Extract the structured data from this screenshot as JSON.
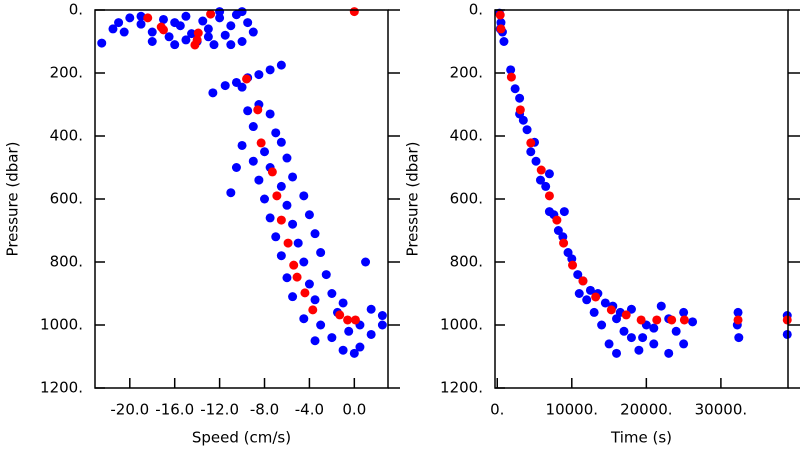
{
  "chart_data": [
    {
      "type": "scatter",
      "xlabel": "Speed (cm/s)",
      "ylabel": "Pressure (dbar)",
      "xlim": [
        -23.1,
        3.0
      ],
      "ylim": [
        1200,
        0
      ],
      "xticks": [
        {
          "value": -20,
          "label": "-20.0"
        },
        {
          "value": -16,
          "label": "-16.0"
        },
        {
          "value": -12,
          "label": "-12.0"
        },
        {
          "value": -8,
          "label": "-8.0"
        },
        {
          "value": -4,
          "label": "-4.0"
        },
        {
          "value": 0,
          "label": "0.0"
        }
      ],
      "yticks": [
        {
          "value": 0,
          "label": "0."
        },
        {
          "value": 200,
          "label": "200."
        },
        {
          "value": 400,
          "label": "400."
        },
        {
          "value": 600,
          "label": "600."
        },
        {
          "value": 800,
          "label": "800."
        },
        {
          "value": 1000,
          "label": "1000."
        },
        {
          "value": 1200,
          "label": "1200."
        }
      ],
      "series": [
        {
          "color": "#0000ff",
          "x": [
            -22.5,
            -21.5,
            -21,
            -20,
            -19,
            -18,
            -18,
            -17,
            -16.5,
            -16,
            -15.5,
            -15,
            -14.5,
            -14,
            -13.5,
            -13,
            -12.5,
            -12,
            -11.5,
            -11,
            -10.5,
            -10,
            -9.5,
            -9,
            -12,
            -10,
            -15,
            -19,
            -20.5,
            -13,
            -11,
            -16,
            -11.5,
            -10.5,
            -9.5,
            -8.5,
            -7.5,
            -6.5,
            -10,
            -12.6,
            -9.5,
            -8.5,
            -7.5,
            -9,
            -7,
            -10,
            -8,
            -6.5,
            -9,
            -7.5,
            -6,
            -8.5,
            -6.5,
            -5.5,
            -8,
            -6,
            -4.5,
            -7.5,
            -5.5,
            -4,
            -7,
            -5,
            -3.5,
            -6.5,
            -4.5,
            -3,
            -6,
            -4,
            -2.5,
            -5.5,
            -3.5,
            -2,
            -4.5,
            -3,
            -1.5,
            -2,
            -0.5,
            0.5,
            1.5,
            2.5,
            -1,
            0.5,
            1.5,
            2.5,
            -3.5,
            -1,
            0,
            1,
            -10.5,
            -11
          ],
          "values": [
            105,
            60,
            40,
            25,
            45,
            70,
            100,
            30,
            85,
            110,
            50,
            20,
            75,
            100,
            35,
            60,
            110,
            25,
            80,
            50,
            15,
            100,
            40,
            70,
            5,
            5,
            95,
            20,
            70,
            85,
            110,
            40,
            240,
            230,
            215,
            205,
            190,
            175,
            245,
            263,
            320,
            300,
            330,
            370,
            390,
            430,
            450,
            420,
            480,
            500,
            470,
            540,
            560,
            530,
            600,
            620,
            590,
            660,
            680,
            650,
            720,
            740,
            710,
            780,
            800,
            770,
            850,
            870,
            840,
            910,
            920,
            900,
            980,
            1000,
            960,
            1040,
            1020,
            1000,
            950,
            970,
            1080,
            1070,
            1030,
            1000,
            1050,
            930,
            1090,
            800,
            500,
            580
          ]
        },
        {
          "color": "#ff0000",
          "x": [
            0,
            -18.4,
            -17.2,
            -17.0,
            -12.8,
            -13.9,
            -14.0,
            -14.2,
            -9.6,
            -8.6,
            -8.3,
            -7.3,
            -6.9,
            -6.5,
            -5.9,
            -5.4,
            -5.1,
            -4.4,
            -3.7,
            -1.3,
            -0.6,
            0.1
          ],
          "values": [
            5,
            25,
            54,
            63,
            13,
            73,
            95,
            111,
            219,
            317,
            422,
            514,
            590,
            667,
            740,
            810,
            848,
            898,
            952,
            968,
            984,
            984
          ]
        }
      ]
    },
    {
      "type": "scatter",
      "xlabel": "Time (s)",
      "ylabel": "Pressure (dbar)",
      "xlim": [
        -300,
        39000
      ],
      "ylim": [
        1200,
        0
      ],
      "xticks": [
        {
          "value": 0,
          "label": "0."
        },
        {
          "value": 10000,
          "label": "10000."
        },
        {
          "value": 20000,
          "label": "20000."
        },
        {
          "value": 30000,
          "label": "30000."
        }
      ],
      "yticks": [
        {
          "value": 0,
          "label": "0."
        },
        {
          "value": 200,
          "label": "200."
        },
        {
          "value": 400,
          "label": "400."
        },
        {
          "value": 600,
          "label": "600."
        },
        {
          "value": 800,
          "label": "800."
        },
        {
          "value": 1000,
          "label": "1000."
        },
        {
          "value": 1200,
          "label": "1200."
        }
      ],
      "series": [
        {
          "color": "#0000ff",
          "x": [
            300,
            500,
            700,
            900,
            400,
            1800,
            2400,
            3000,
            3500,
            4000,
            4500,
            5200,
            5800,
            6500,
            7000,
            7600,
            8200,
            8800,
            9500,
            10000,
            10800,
            11500,
            12500,
            13500,
            14500,
            15500,
            16500,
            14000,
            15000,
            16000,
            17000,
            18000,
            19000,
            20000,
            21000,
            22000,
            23000,
            24000,
            25000,
            25000,
            18000,
            21000,
            13000,
            16000,
            23000,
            19500,
            12000,
            26200,
            32300,
            32400,
            32200,
            38900,
            38900,
            9000,
            7000,
            11000,
            5000,
            3000
          ],
          "values": [
            10,
            40,
            70,
            100,
            60,
            190,
            250,
            280,
            350,
            380,
            450,
            480,
            540,
            560,
            640,
            650,
            700,
            720,
            770,
            790,
            840,
            860,
            890,
            900,
            930,
            940,
            960,
            1000,
            1060,
            1090,
            1020,
            950,
            1080,
            1000,
            1060,
            940,
            1090,
            1020,
            960,
            1060,
            1040,
            1010,
            960,
            980,
            980,
            1040,
            920,
            990,
            960,
            1040,
            1000,
            970,
            1030,
            640,
            520,
            900,
            420,
            330
          ]
        },
        {
          "color": "#ff0000",
          "x": [
            400,
            500,
            1900,
            3100,
            4500,
            5900,
            7000,
            8000,
            8900,
            10100,
            11500,
            13200,
            15300,
            17300,
            19300,
            21400,
            23400,
            25100,
            32300,
            38900
          ],
          "values": [
            16,
            60,
            213,
            317,
            422,
            508,
            590,
            667,
            740,
            810,
            860,
            911,
            952,
            968,
            984,
            984,
            984,
            984,
            984,
            984
          ]
        }
      ]
    }
  ]
}
